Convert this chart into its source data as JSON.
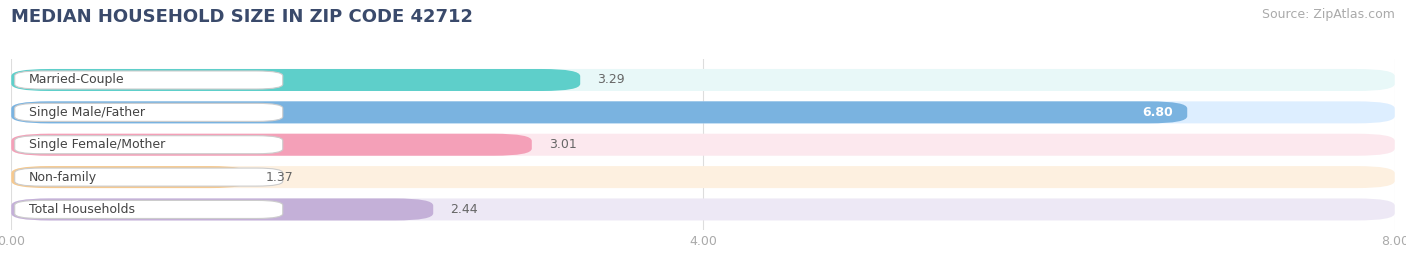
{
  "title": "MEDIAN HOUSEHOLD SIZE IN ZIP CODE 42712",
  "source": "Source: ZipAtlas.com",
  "categories": [
    "Married-Couple",
    "Single Male/Father",
    "Single Female/Mother",
    "Non-family",
    "Total Households"
  ],
  "values": [
    3.29,
    6.8,
    3.01,
    1.37,
    2.44
  ],
  "bar_colors": [
    "#5ecfca",
    "#7ab3e0",
    "#f4a0b8",
    "#f5c990",
    "#c4b0d8"
  ],
  "bar_bg_colors": [
    "#e8f8f8",
    "#ddeeff",
    "#fce8ee",
    "#fdf0e0",
    "#ede8f5"
  ],
  "value_inside": [
    false,
    true,
    false,
    false,
    false
  ],
  "xmax": 8.0,
  "xticks": [
    0.0,
    4.0,
    8.0
  ],
  "xtick_labels": [
    "0.00",
    "4.00",
    "8.00"
  ],
  "label_color": "#aaaaaa",
  "title_color": "#3a4a6b",
  "title_fontsize": 13,
  "source_fontsize": 9,
  "label_fontsize": 9,
  "value_fontsize": 9,
  "bar_height": 0.68,
  "background_color": "#ffffff",
  "grid_color": "#dddddd"
}
